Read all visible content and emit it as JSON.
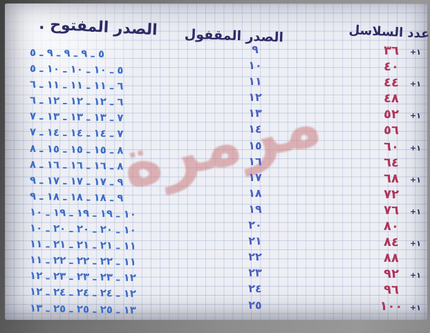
{
  "headers": {
    "open_column": "الصدر المفتوح .",
    "closed_column": "الصدر المقفول",
    "chains_column": "عدد السلاسل"
  },
  "watermark": {
    "text": "مرمرة"
  },
  "colors": {
    "paper": "#edeff5",
    "navy_ink": "#2d2b66",
    "blue_ink": "#3a6cc8",
    "indigo_ink": "#4a5ec2",
    "red_ink": "#b03358",
    "watermark_pink": "#cd7d80"
  },
  "rows": [
    {
      "open_pattern": "٥ ـ ٩ ـ ٩ ـ ٩ ـ ٥",
      "closed_value": "٩",
      "chains_value": "٣٦",
      "extra": "+١",
      "closed_decimal": 9,
      "chains_decimal": 36
    },
    {
      "open_pattern": "٥ ـ ١٠ ـ ١٠ ـ ١٠ ـ ٥",
      "closed_value": "١٠",
      "chains_value": "٤٠",
      "extra": "",
      "closed_decimal": 10,
      "chains_decimal": 40
    },
    {
      "open_pattern": "٦ ـ ١١ ـ ١١ ـ ١١ ـ ٦",
      "closed_value": "١١",
      "chains_value": "٤٤",
      "extra": "+١",
      "closed_decimal": 11,
      "chains_decimal": 44
    },
    {
      "open_pattern": "٦ ـ ١٢ ـ ١٢ ـ ١٢ ـ ٦",
      "closed_value": "١٢",
      "chains_value": "٤٨",
      "extra": "",
      "closed_decimal": 12,
      "chains_decimal": 48
    },
    {
      "open_pattern": "٧ ـ ١٣ ـ ١٣ ـ ١٣ ـ ٧",
      "closed_value": "١٣",
      "chains_value": "٥٢",
      "extra": "+١",
      "closed_decimal": 13,
      "chains_decimal": 52
    },
    {
      "open_pattern": "٧ ـ ١٤ ـ ١٤ ـ ١٤ ـ ٧",
      "closed_value": "١٤",
      "chains_value": "٥٦",
      "extra": "",
      "closed_decimal": 14,
      "chains_decimal": 56
    },
    {
      "open_pattern": "٨ ـ ١٥ ـ ١٥ ـ ١٥ ـ ٨",
      "closed_value": "١٥",
      "chains_value": "٦٠",
      "extra": "+١",
      "closed_decimal": 15,
      "chains_decimal": 60
    },
    {
      "open_pattern": "٨ ـ ١٦ ـ ١٦ ـ ١٦ ـ ٨",
      "closed_value": "١٦",
      "chains_value": "٦٤",
      "extra": "",
      "closed_decimal": 16,
      "chains_decimal": 64
    },
    {
      "open_pattern": "٩ ـ ١٧ ـ ١٧ ـ ١٧ ـ ٩",
      "closed_value": "١٧",
      "chains_value": "٦٨",
      "extra": "+١",
      "closed_decimal": 17,
      "chains_decimal": 68
    },
    {
      "open_pattern": "٩ ـ ١٨ ـ ١٨ ـ ١٨ ـ ٩",
      "closed_value": "١٨",
      "chains_value": "٧٢",
      "extra": "",
      "closed_decimal": 18,
      "chains_decimal": 72
    },
    {
      "open_pattern": "١٠ ـ ١٩ ـ ١٩ ـ ١٩ ـ ١٠",
      "closed_value": "١٩",
      "chains_value": "٧٦",
      "extra": "+١",
      "closed_decimal": 19,
      "chains_decimal": 76
    },
    {
      "open_pattern": "١٠ ـ ٢٠ ـ ٢٠ ـ ٢٠ ـ ١٠",
      "closed_value": "٢٠",
      "chains_value": "٨٠",
      "extra": "",
      "closed_decimal": 20,
      "chains_decimal": 80
    },
    {
      "open_pattern": "١١ ـ ٢١ ـ ٢١ ـ ٢١ ـ ١١",
      "closed_value": "٢١",
      "chains_value": "٨٤",
      "extra": "+١",
      "closed_decimal": 21,
      "chains_decimal": 84
    },
    {
      "open_pattern": "١١ ـ ٢٢ ـ ٢٢ ـ ٢٢ ـ ١١",
      "closed_value": "٢٢",
      "chains_value": "٨٨",
      "extra": "",
      "closed_decimal": 22,
      "chains_decimal": 88
    },
    {
      "open_pattern": "١٢ ـ ٢٣ ـ ٢٣ ـ ٢٣ ـ ١٢",
      "closed_value": "٢٣",
      "chains_value": "٩٢",
      "extra": "+١",
      "closed_decimal": 23,
      "chains_decimal": 92
    },
    {
      "open_pattern": "١٢ ـ ٢٤ ـ ٢٤ ـ ٢٤ ـ ١٢",
      "closed_value": "٢٤",
      "chains_value": "٩٦",
      "extra": "",
      "closed_decimal": 24,
      "chains_decimal": 96
    },
    {
      "open_pattern": "١٣ ـ ٢٥ ـ ٢٥ ـ ٢٥ ـ ١٣",
      "closed_value": "٢٥",
      "chains_value": "١٠٠",
      "extra": "+١",
      "closed_decimal": 25,
      "chains_decimal": 100
    }
  ]
}
